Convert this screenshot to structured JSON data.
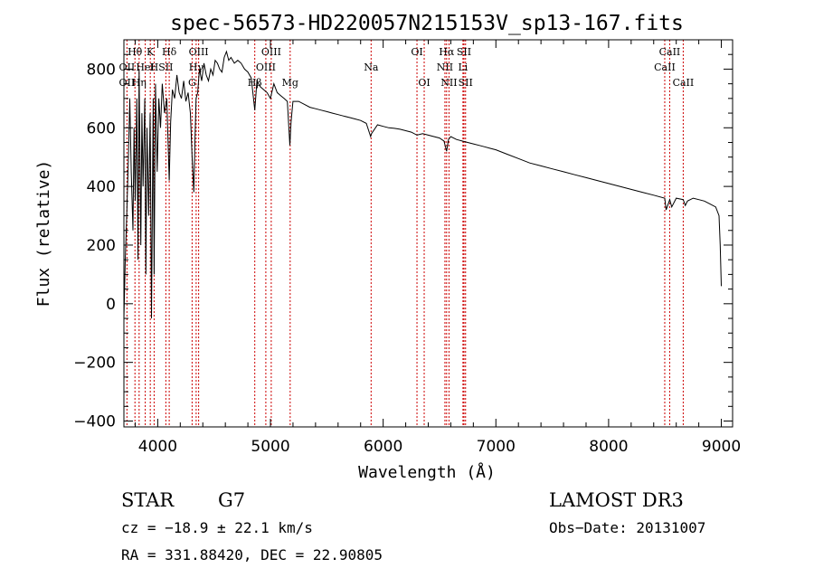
{
  "chart_data": {
    "type": "line",
    "title": "spec-56573-HD220057N215153V_sp13-167.fits",
    "xlabel": "Wavelength (Å)",
    "ylabel": "Flux (relative)",
    "xlim": [
      3700,
      9100
    ],
    "ylim": [
      -420,
      900
    ],
    "xticks": [
      4000,
      5000,
      6000,
      7000,
      8000,
      9000
    ],
    "yticks": [
      -400,
      -200,
      0,
      200,
      400,
      600,
      800
    ],
    "series": [
      {
        "name": "flux",
        "x": [
          3700,
          3712,
          3725,
          3740,
          3752,
          3765,
          3780,
          3790,
          3800,
          3815,
          3825,
          3835,
          3850,
          3860,
          3870,
          3885,
          3895,
          3905,
          3920,
          3933,
          3945,
          3960,
          3968,
          3980,
          3995,
          4010,
          4025,
          4040,
          4060,
          4080,
          4102,
          4115,
          4130,
          4150,
          4170,
          4190,
          4210,
          4230,
          4250,
          4270,
          4290,
          4305,
          4320,
          4330,
          4340,
          4355,
          4370,
          4390,
          4410,
          4430,
          4450,
          4470,
          4490,
          4510,
          4530,
          4550,
          4570,
          4590,
          4610,
          4630,
          4650,
          4680,
          4710,
          4740,
          4770,
          4800,
          4830,
          4861,
          4880,
          4910,
          4940,
          4970,
          5000,
          5030,
          5060,
          5090,
          5120,
          5150,
          5172,
          5183,
          5200,
          5250,
          5300,
          5350,
          5400,
          5450,
          5500,
          5550,
          5600,
          5650,
          5700,
          5750,
          5800,
          5850,
          5889,
          5896,
          5950,
          6000,
          6050,
          6100,
          6150,
          6200,
          6250,
          6300,
          6350,
          6400,
          6450,
          6500,
          6540,
          6563,
          6580,
          6600,
          6650,
          6700,
          6750,
          6800,
          6850,
          6900,
          6950,
          7000,
          7100,
          7200,
          7300,
          7400,
          7500,
          7600,
          7700,
          7800,
          7900,
          8000,
          8100,
          8200,
          8300,
          8400,
          8498,
          8510,
          8542,
          8560,
          8600,
          8662,
          8680,
          8700,
          8750,
          8800,
          8850,
          8900,
          8950,
          8980,
          8990,
          9000
        ],
        "values": [
          -50,
          150,
          300,
          500,
          700,
          450,
          250,
          600,
          350,
          700,
          150,
          800,
          200,
          650,
          400,
          700,
          100,
          600,
          300,
          650,
          -50,
          700,
          100,
          750,
          450,
          700,
          600,
          750,
          650,
          700,
          420,
          620,
          730,
          700,
          780,
          720,
          700,
          760,
          690,
          720,
          650,
          500,
          380,
          550,
          700,
          720,
          800,
          760,
          820,
          780,
          760,
          800,
          780,
          830,
          820,
          800,
          790,
          840,
          860,
          830,
          840,
          820,
          830,
          820,
          800,
          790,
          770,
          660,
          760,
          740,
          730,
          720,
          700,
          750,
          720,
          710,
          700,
          690,
          540,
          620,
          690,
          690,
          680,
          670,
          665,
          660,
          655,
          650,
          645,
          640,
          635,
          630,
          625,
          615,
          570,
          580,
          610,
          605,
          600,
          598,
          595,
          590,
          585,
          575,
          580,
          575,
          570,
          565,
          555,
          520,
          560,
          570,
          560,
          555,
          550,
          545,
          540,
          535,
          530,
          525,
          510,
          495,
          480,
          470,
          460,
          450,
          440,
          430,
          420,
          410,
          400,
          390,
          380,
          370,
          360,
          320,
          355,
          330,
          360,
          355,
          335,
          350,
          360,
          355,
          350,
          340,
          330,
          300,
          200,
          60
        ]
      }
    ],
    "spectral_lines": [
      {
        "label": "Hθ",
        "wavelength": 3798,
        "row": 1
      },
      {
        "label": "OII",
        "wavelength": 3727,
        "row": 2
      },
      {
        "label": "Hη",
        "wavelength": 3835,
        "row": 3
      },
      {
        "label": "OII",
        "wavelength": 3727,
        "row": 3
      },
      {
        "label": "K",
        "wavelength": 3934,
        "row": 1
      },
      {
        "label": "HeI",
        "wavelength": 3889,
        "row": 2
      },
      {
        "label": "H",
        "wavelength": 3968,
        "row": 2
      },
      {
        "label": "Hδ",
        "wavelength": 4102,
        "row": 1
      },
      {
        "label": "SII",
        "wavelength": 4072,
        "row": 2
      },
      {
        "label": "OIII",
        "wavelength": 4363,
        "row": 1
      },
      {
        "label": "Hγ",
        "wavelength": 4341,
        "row": 2
      },
      {
        "label": "G",
        "wavelength": 4305,
        "row": 3
      },
      {
        "label": "OIII",
        "wavelength": 5007,
        "row": 1
      },
      {
        "label": "OIII",
        "wavelength": 4959,
        "row": 2
      },
      {
        "label": "Hβ",
        "wavelength": 4861,
        "row": 3
      },
      {
        "label": "Mg",
        "wavelength": 5175,
        "row": 3
      },
      {
        "label": "Na",
        "wavelength": 5893,
        "row": 2
      },
      {
        "label": "OI",
        "wavelength": 6300,
        "row": 1
      },
      {
        "label": "OI",
        "wavelength": 6364,
        "row": 3
      },
      {
        "label": "Hα",
        "wavelength": 6563,
        "row": 1
      },
      {
        "label": "NII",
        "wavelength": 6548,
        "row": 2
      },
      {
        "label": "NII",
        "wavelength": 6584,
        "row": 3
      },
      {
        "label": "SII",
        "wavelength": 6717,
        "row": 1
      },
      {
        "label": "Li",
        "wavelength": 6708,
        "row": 2
      },
      {
        "label": "SII",
        "wavelength": 6731,
        "row": 3
      },
      {
        "label": "CaII",
        "wavelength": 8542,
        "row": 1
      },
      {
        "label": "CaII",
        "wavelength": 8498,
        "row": 2
      },
      {
        "label": "CaII",
        "wavelength": 8662,
        "row": 3
      }
    ]
  },
  "info": {
    "object_class": "STAR",
    "subclass": "G7",
    "survey": "LAMOST DR3",
    "cz_text": "cz = −18.9 ± 22.1 km/s",
    "obs_date_text": "Obs−Date: 20131007",
    "coords_text": "RA = 331.88420, DEC =  22.90805"
  }
}
